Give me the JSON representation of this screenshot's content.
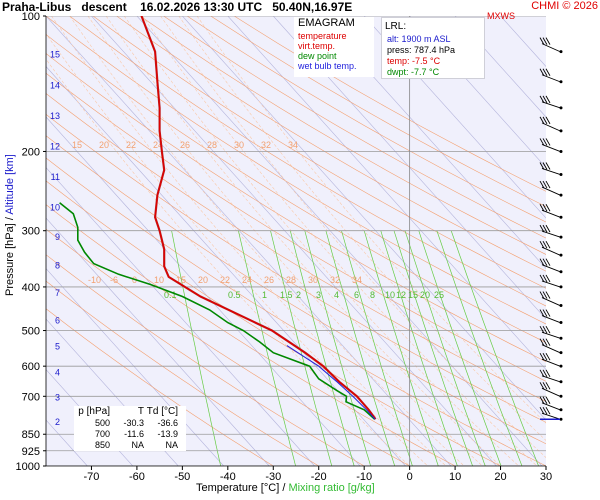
{
  "header": {
    "station": "Praha-Libus",
    "mode": "descent",
    "datetime": "16.02.2026 13:30 UTC",
    "coords": "50.40N,16.97E",
    "copyright": "CHMI © 2026",
    "wind_label": "MXWS"
  },
  "legend": {
    "title": "EMAGRAM",
    "items": [
      {
        "label": "temperature",
        "color": "#dd0000"
      },
      {
        "label": "virt.temp.",
        "color": "#dd0000"
      },
      {
        "label": "dew point",
        "color": "#008800"
      },
      {
        "label": "wet bulb temp.",
        "color": "#2222dd"
      }
    ]
  },
  "lrl": {
    "title": "LRL:",
    "alt": "alt: 1900 m ASL",
    "press": "press: 787.4 hPa",
    "temp": "temp: -7.5 °C",
    "dwpt": "dwpt: -7.7 °C"
  },
  "table": {
    "headers": [
      "p [hPa]",
      "T",
      "Td [°C]"
    ],
    "rows": [
      [
        "500",
        "-30.3",
        "-36.6"
      ],
      [
        "700",
        "-11.6",
        "-13.9"
      ],
      [
        "850",
        "NA",
        "NA"
      ]
    ]
  },
  "axes": {
    "xlabel_temp": "Temperature [°C]",
    "xlabel_sep": "/",
    "xlabel_mix": "Mixing ratio [g/kg]",
    "ylabel_pressure": "Pressure [hPa]",
    "ylabel_sep": "/",
    "ylabel_alt": "Altitude [km]"
  },
  "colors": {
    "temperature": "#dd0000",
    "dewpoint": "#008800",
    "wetbulb": "#2222dd",
    "isotherm": "#b4b4dc",
    "dry_adiabat": "#f4a070",
    "moist_adiabat": "#f9c8a8",
    "mixing_ratio": "#66cc44",
    "plot_bg": "#f0f0fc",
    "copyright": "#e00000"
  },
  "chart_data": {
    "type": "line",
    "x_scale": "temperature (°C)",
    "y_scale": "log pressure (hPa)",
    "xlim": [
      -80,
      30
    ],
    "ylim": [
      1000,
      100
    ],
    "x_ticks": [
      -70,
      -60,
      -50,
      -40,
      -30,
      -20,
      -10,
      0,
      10,
      20,
      30
    ],
    "y_ticks": [
      100,
      200,
      300,
      400,
      500,
      600,
      700,
      850,
      925,
      1000
    ],
    "km_ticks": [
      {
        "km": 2,
        "p": 795
      },
      {
        "km": 3,
        "p": 701
      },
      {
        "km": 4,
        "p": 616
      },
      {
        "km": 5,
        "p": 540
      },
      {
        "km": 6,
        "p": 472
      },
      {
        "km": 7,
        "p": 411
      },
      {
        "km": 8,
        "p": 357
      },
      {
        "km": 9,
        "p": 308
      },
      {
        "km": 10,
        "p": 265
      },
      {
        "km": 11,
        "p": 227
      },
      {
        "km": 12,
        "p": 194
      },
      {
        "km": 13,
        "p": 166
      },
      {
        "km": 14,
        "p": 142
      },
      {
        "km": 15,
        "p": 121
      }
    ],
    "mixing_ratio_labels": [
      "0.1",
      "0.5",
      "1",
      "1.5",
      "2",
      "3",
      "4",
      "6",
      "8",
      "10",
      "12",
      "15",
      "20",
      "25"
    ],
    "mixing_ratio_values": [
      0.1,
      0.5,
      1,
      1.5,
      2,
      3,
      4,
      6,
      8,
      10,
      12,
      15,
      20,
      25
    ],
    "dry_adiabat_labels_200": [
      "15",
      "20",
      "22",
      "24",
      "26",
      "28",
      "30",
      "32",
      "34"
    ],
    "dry_adiabat_labels_400": [
      "-10",
      "-6",
      "0",
      "10",
      "15",
      "20",
      "22",
      "24",
      "26",
      "28",
      "30",
      "32",
      "34"
    ],
    "series": [
      {
        "name": "temperature",
        "p": [
          100,
          120,
          140,
          160,
          180,
          200,
          220,
          250,
          280,
          300,
          330,
          360,
          380,
          420,
          500,
          560,
          600,
          650,
          700,
          750,
          787
        ],
        "t": [
          -59,
          -56,
          -55.5,
          -55,
          -55,
          -54.5,
          -54,
          -55.5,
          -56,
          -55,
          -54,
          -54,
          -53,
          -46,
          -30.3,
          -23,
          -19,
          -15.5,
          -11.6,
          -9,
          -7.5
        ]
      },
      {
        "name": "dew point",
        "p": [
          260,
          275,
          295,
          315,
          335,
          355,
          375,
          395,
          420,
          450,
          480,
          500,
          530,
          560,
          600,
          640,
          680,
          700,
          720,
          750,
          787
        ],
        "t": [
          -77,
          -74,
          -73,
          -73,
          -71.5,
          -69.5,
          -64,
          -57,
          -50,
          -44,
          -40,
          -36.6,
          -33,
          -30,
          -22,
          -20,
          -16,
          -13.9,
          -14,
          -10,
          -7.7
        ]
      }
    ]
  }
}
